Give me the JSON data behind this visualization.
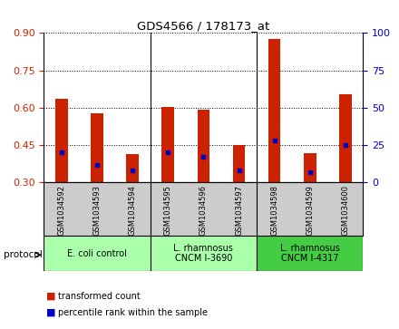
{
  "title": "GDS4566 / 178173_at",
  "samples": [
    "GSM1034592",
    "GSM1034593",
    "GSM1034594",
    "GSM1034595",
    "GSM1034596",
    "GSM1034597",
    "GSM1034598",
    "GSM1034599",
    "GSM1034600"
  ],
  "red_values": [
    0.635,
    0.578,
    0.415,
    0.603,
    0.592,
    0.452,
    0.875,
    0.418,
    0.655
  ],
  "blue_values_pct": [
    20,
    12,
    8,
    20,
    17,
    8,
    28,
    7,
    25
  ],
  "ylim": [
    0.3,
    0.9
  ],
  "y2lim": [
    0,
    100
  ],
  "yticks": [
    0.3,
    0.45,
    0.6,
    0.75,
    0.9
  ],
  "y2ticks": [
    0,
    25,
    50,
    75,
    100
  ],
  "bar_color": "#cc2200",
  "dot_color": "#0000cc",
  "bar_width": 0.35,
  "bg_color_labels": "#cccccc",
  "proto_color_light": "#aaffaa",
  "proto_color_dark": "#44cc44",
  "ylabel_left_color": "#cc2200",
  "ylabel_right_color": "#0000cc",
  "proto_labels": [
    "E. coli control",
    "L. rhamnosus\nCNCM I-3690",
    "L. rhamnosus\nCNCM I-4317"
  ],
  "proto_ranges": [
    [
      0,
      3
    ],
    [
      3,
      6
    ],
    [
      6,
      9
    ]
  ],
  "proto_colors": [
    "#aaffaa",
    "#aaffaa",
    "#44cc44"
  ]
}
